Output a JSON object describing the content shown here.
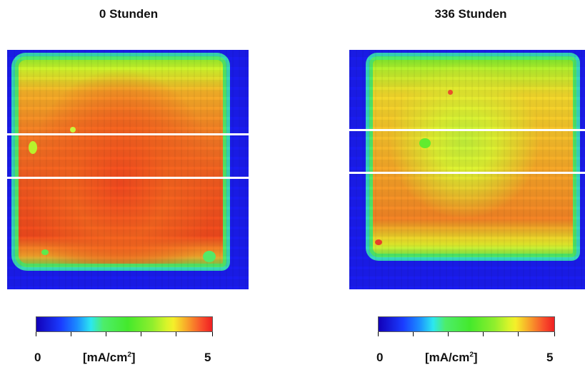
{
  "figure": {
    "panels": [
      {
        "title": "0 Stunden"
      },
      {
        "title": "336 Stunden"
      }
    ],
    "colorbar": {
      "min_label": "0",
      "max_label": "5",
      "unit_main": "[mA/cm",
      "unit_sup": "2",
      "unit_close": "]"
    },
    "colors": {
      "background": "#1a1cf0",
      "low": "#1200b8",
      "high": "#ef1f22"
    }
  }
}
